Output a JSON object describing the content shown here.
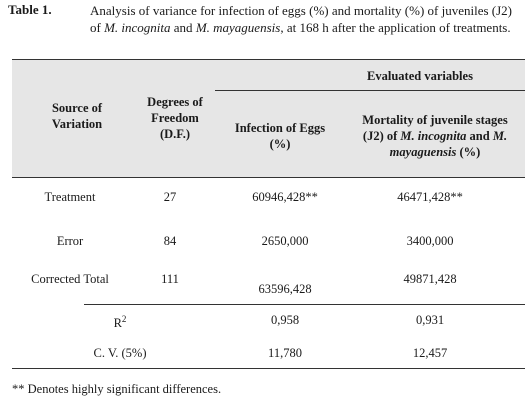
{
  "caption": {
    "label": "Table 1.",
    "text_part1": "Analysis of variance for infection of eggs (%) and mortality (%) of juveniles (J2) of ",
    "species1": "M. incognita",
    "text_part2": " and ",
    "species2": "M. mayaguensis",
    "text_part3": ", at 168 h after the application of treatments."
  },
  "headers": {
    "group": "Evaluated variables",
    "source": [
      "Source of",
      "Variation"
    ],
    "df": [
      "Degrees of",
      "Freedom",
      "(D.F.)"
    ],
    "infection": [
      "Infection of Eggs",
      "(%)"
    ],
    "mortality_line1": "Mortality of juvenile stages",
    "mortality_line2_pre": "(J2) of ",
    "mortality_line2_sp1": "M. incognita",
    "mortality_line2_mid": " and ",
    "mortality_line2_sp2a": "M.",
    "mortality_line3_sp2b": "mayaguensis",
    "mortality_line3_post": " (%)"
  },
  "rows": [
    {
      "source": "Treatment",
      "df": "27",
      "infection": "60946,428**",
      "mortality": "46471,428**"
    },
    {
      "source": "Error",
      "df": "84",
      "infection": "2650,000",
      "mortality": "3400,000"
    },
    {
      "source": "Corrected Total",
      "df": "111",
      "infection": "63596,428",
      "mortality": "49871,428"
    }
  ],
  "stats": [
    {
      "label_base": "R",
      "label_sup": "2",
      "infection": "0,958",
      "mortality": "0,931"
    },
    {
      "label": "C. V. (5%)",
      "infection": "11,780",
      "mortality": "12,457"
    }
  ],
  "footnote": "** Denotes highly significant differences."
}
